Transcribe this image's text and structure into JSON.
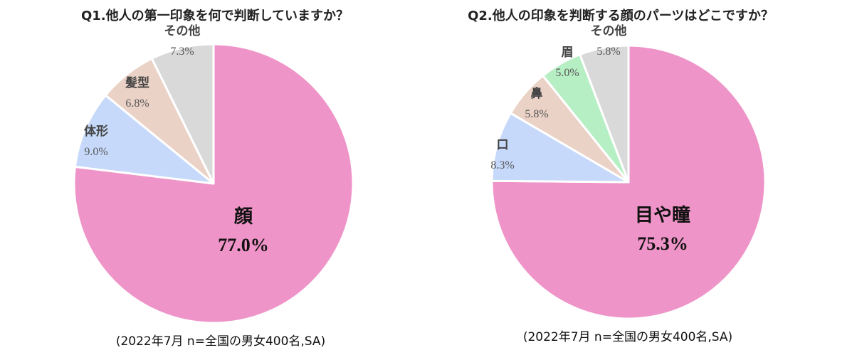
{
  "chart_data": [
    {
      "type": "pie",
      "title": "Q1.他人の第一印象を何で判断していますか？",
      "note": "(2022年7月 n=全国の男女400名,SA)",
      "slices": [
        {
          "label": "顔",
          "value": 77.0,
          "value_label": "77.0%",
          "color": "#ef94c8"
        },
        {
          "label": "体形",
          "value": 9.0,
          "value_label": "9.0%",
          "color": "#c6d9fb"
        },
        {
          "label": "髪型",
          "value": 6.8,
          "value_label": "6.8%",
          "color": "#ebd2c7"
        },
        {
          "label": "その他",
          "value": 7.3,
          "value_label": "7.3%",
          "color": "#d9d9d9"
        }
      ]
    },
    {
      "type": "pie",
      "title": "Q2.他人の印象を判断する顔のパーツはどこですか？",
      "note": "(2022年7月 n=全国の男女400名,SA)",
      "slices": [
        {
          "label": "目や瞳",
          "value": 75.3,
          "value_label": "75.3%",
          "color": "#ef94c8"
        },
        {
          "label": "口",
          "value": 8.3,
          "value_label": "8.3%",
          "color": "#c6d9fb"
        },
        {
          "label": "鼻",
          "value": 5.8,
          "value_label": "5.8%",
          "color": "#ebd2c7"
        },
        {
          "label": "眉",
          "value": 5.0,
          "value_label": "5.0%",
          "color": "#b7efc4"
        },
        {
          "label": "その他",
          "value": 5.8,
          "value_label": "5.8%",
          "color": "#d9d9d9"
        }
      ]
    }
  ]
}
